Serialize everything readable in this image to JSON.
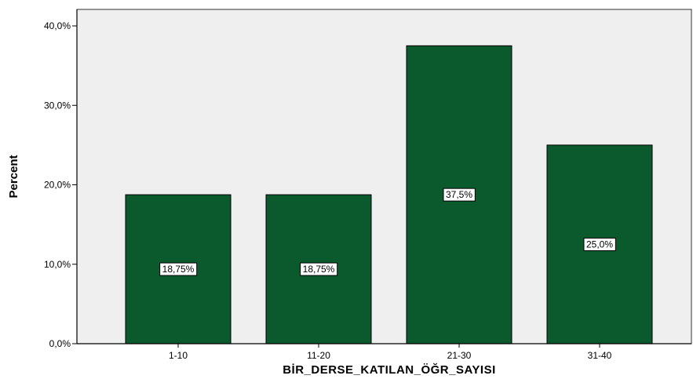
{
  "chart_data": {
    "type": "bar",
    "categories": [
      "1-10",
      "11-20",
      "21-30",
      "31-40"
    ],
    "values": [
      18.75,
      18.75,
      37.5,
      25.0
    ],
    "data_labels": [
      "18,75%",
      "18,75%",
      "37,5%",
      "25,0%"
    ],
    "xlabel": "BİR_DERSE_KATILAN_ÖĞR_SAYISI",
    "ylabel": "Percent",
    "ylim": [
      0,
      40
    ],
    "yticks": [
      {
        "value": 0,
        "label": "0,0%"
      },
      {
        "value": 10,
        "label": "10,0%"
      },
      {
        "value": 20,
        "label": "20,0%"
      },
      {
        "value": 30,
        "label": "30,0%"
      },
      {
        "value": 40,
        "label": "40,0%"
      }
    ],
    "grid": false,
    "colors": {
      "bar_fill": "#0b5a2e",
      "bar_stroke": "#000000",
      "plot_background": "#efefef"
    }
  }
}
